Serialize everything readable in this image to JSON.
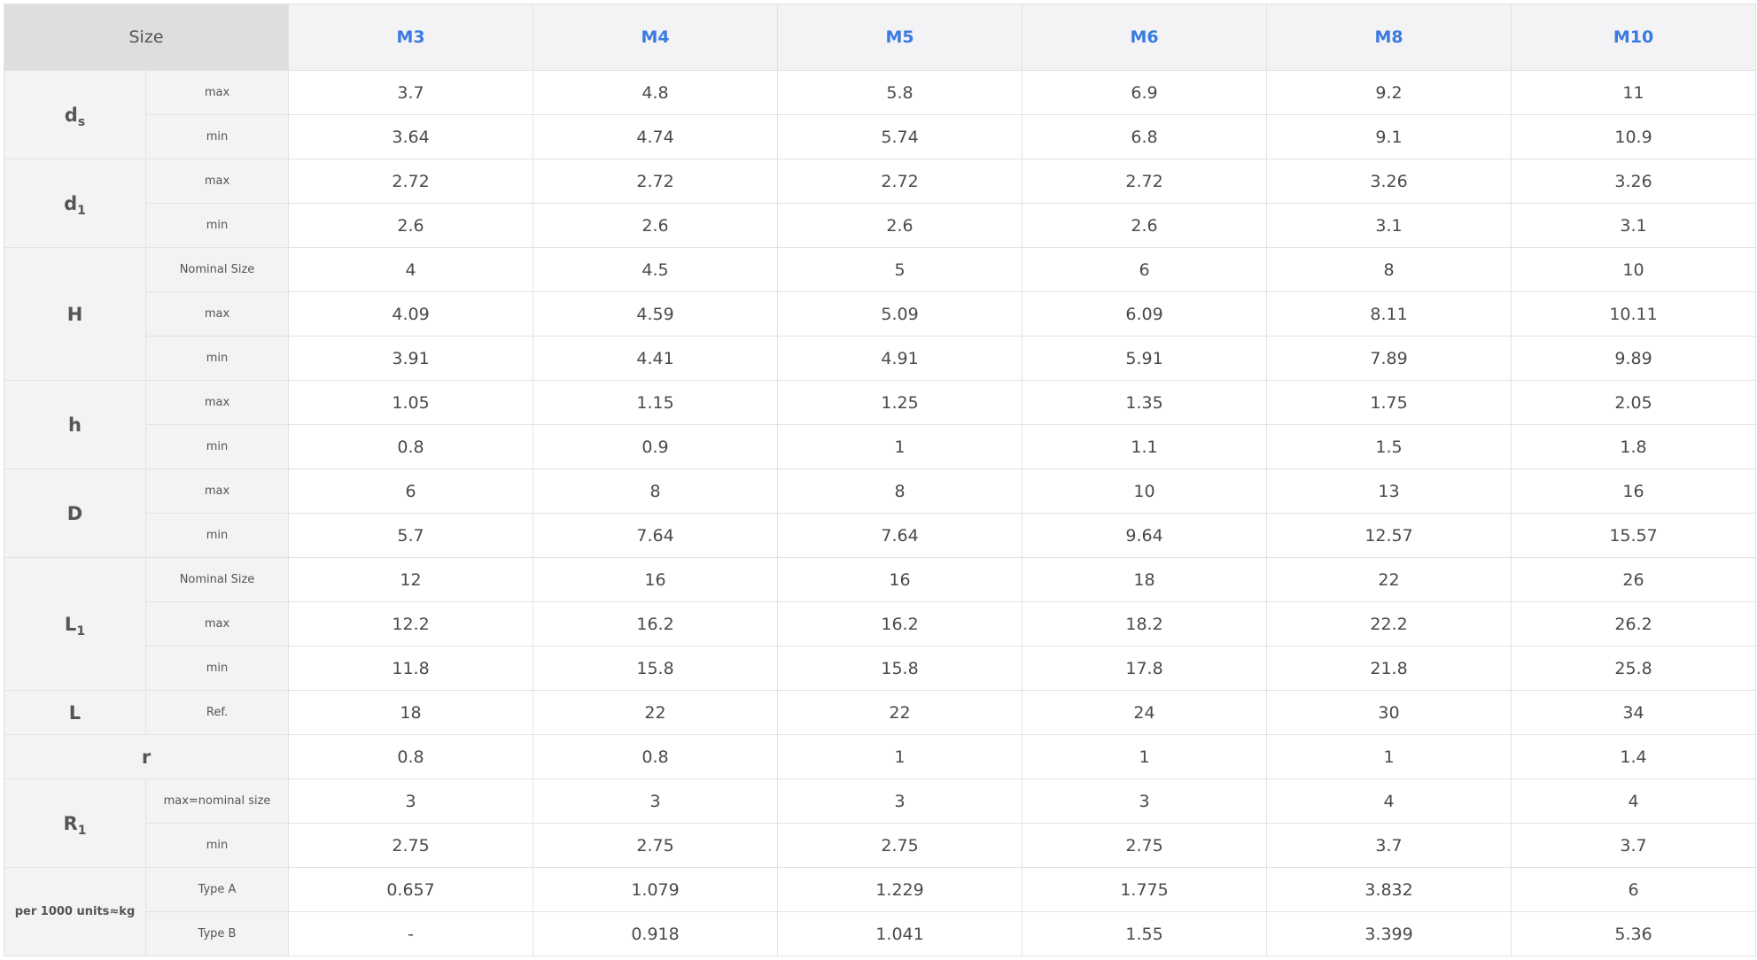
{
  "header": {
    "size_label": "Size",
    "sizes": [
      "M3",
      "M4",
      "M5",
      "M6",
      "M8",
      "M10"
    ]
  },
  "groups": [
    {
      "label": "d",
      "sub": "s",
      "rows": [
        {
          "label": "max",
          "values": [
            "3.7",
            "4.8",
            "5.8",
            "6.9",
            "9.2",
            "11"
          ]
        },
        {
          "label": "min",
          "values": [
            "3.64",
            "4.74",
            "5.74",
            "6.8",
            "9.1",
            "10.9"
          ]
        }
      ]
    },
    {
      "label": "d",
      "sub": "1",
      "rows": [
        {
          "label": "max",
          "values": [
            "2.72",
            "2.72",
            "2.72",
            "2.72",
            "3.26",
            "3.26"
          ]
        },
        {
          "label": "min",
          "values": [
            "2.6",
            "2.6",
            "2.6",
            "2.6",
            "3.1",
            "3.1"
          ]
        }
      ]
    },
    {
      "label": "H",
      "sub": "",
      "rows": [
        {
          "label": "Nominal Size",
          "values": [
            "4",
            "4.5",
            "5",
            "6",
            "8",
            "10"
          ]
        },
        {
          "label": "max",
          "values": [
            "4.09",
            "4.59",
            "5.09",
            "6.09",
            "8.11",
            "10.11"
          ]
        },
        {
          "label": "min",
          "values": [
            "3.91",
            "4.41",
            "4.91",
            "5.91",
            "7.89",
            "9.89"
          ]
        }
      ]
    },
    {
      "label": "h",
      "sub": "",
      "rows": [
        {
          "label": "max",
          "values": [
            "1.05",
            "1.15",
            "1.25",
            "1.35",
            "1.75",
            "2.05"
          ]
        },
        {
          "label": "min",
          "values": [
            "0.8",
            "0.9",
            "1",
            "1.1",
            "1.5",
            "1.8"
          ]
        }
      ]
    },
    {
      "label": "D",
      "sub": "",
      "rows": [
        {
          "label": "max",
          "values": [
            "6",
            "8",
            "8",
            "10",
            "13",
            "16"
          ]
        },
        {
          "label": "min",
          "values": [
            "5.7",
            "7.64",
            "7.64",
            "9.64",
            "12.57",
            "15.57"
          ]
        }
      ]
    },
    {
      "label": "L",
      "sub": "1",
      "rows": [
        {
          "label": "Nominal Size",
          "values": [
            "12",
            "16",
            "16",
            "18",
            "22",
            "26"
          ]
        },
        {
          "label": "max",
          "values": [
            "12.2",
            "16.2",
            "16.2",
            "18.2",
            "22.2",
            "26.2"
          ]
        },
        {
          "label": "min",
          "values": [
            "11.8",
            "15.8",
            "15.8",
            "17.8",
            "21.8",
            "25.8"
          ]
        }
      ]
    },
    {
      "label": "L",
      "sub": "",
      "rows": [
        {
          "label": "Ref.",
          "values": [
            "18",
            "22",
            "22",
            "24",
            "30",
            "34"
          ]
        }
      ]
    },
    {
      "label": "r",
      "sub": "",
      "span": true,
      "rows": [
        {
          "label": "",
          "values": [
            "0.8",
            "0.8",
            "1",
            "1",
            "1",
            "1.4"
          ]
        }
      ]
    },
    {
      "label": "R",
      "sub": "1",
      "rows": [
        {
          "label": "max=nominal size",
          "values": [
            "3",
            "3",
            "3",
            "3",
            "4",
            "4"
          ]
        },
        {
          "label": "min",
          "values": [
            "2.75",
            "2.75",
            "2.75",
            "2.75",
            "3.7",
            "3.7"
          ]
        }
      ]
    },
    {
      "label": "per 1000 units≈kg",
      "sub": "",
      "small": true,
      "rows": [
        {
          "label": "Type A",
          "values": [
            "0.657",
            "1.079",
            "1.229",
            "1.775",
            "3.832",
            "6"
          ]
        },
        {
          "label": "Type B",
          "values": [
            "-",
            "0.918",
            "1.041",
            "1.55",
            "3.399",
            "5.36"
          ]
        }
      ]
    }
  ]
}
